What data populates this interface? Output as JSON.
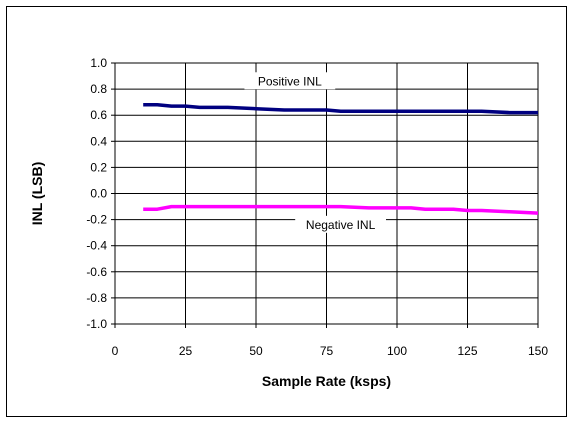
{
  "chart_data": {
    "type": "line",
    "title": "",
    "xlabel": "Sample Rate (ksps)",
    "ylabel": "INL (LSB)",
    "xlim": [
      0,
      150
    ],
    "ylim": [
      -1.0,
      1.0
    ],
    "xticks": [
      0,
      25,
      50,
      75,
      100,
      125,
      150
    ],
    "xtick_labels": [
      "0",
      "25",
      "50",
      "75",
      "100",
      "125",
      "150"
    ],
    "yticks": [
      -1.0,
      -0.8,
      -0.6,
      -0.4,
      -0.2,
      0.0,
      0.2,
      0.4,
      0.6,
      0.8,
      1.0
    ],
    "ytick_labels": [
      "-1.0",
      "-0.8",
      "-0.6",
      "-0.4",
      "-0.2",
      "0.0",
      "0.2",
      "0.4",
      "0.6",
      "0.8",
      "1.0"
    ],
    "grid": true,
    "legend": "none",
    "series": [
      {
        "name": "Positive INL",
        "color": "#000080",
        "x": [
          10,
          15,
          20,
          25,
          30,
          40,
          50,
          60,
          70,
          75,
          80,
          90,
          100,
          110,
          120,
          125,
          130,
          140,
          150
        ],
        "values": [
          0.68,
          0.68,
          0.67,
          0.67,
          0.66,
          0.66,
          0.65,
          0.64,
          0.64,
          0.64,
          0.63,
          0.63,
          0.63,
          0.63,
          0.63,
          0.63,
          0.63,
          0.62,
          0.62
        ]
      },
      {
        "name": "Negative INL",
        "color": "#ff00ff",
        "x": [
          10,
          15,
          20,
          25,
          30,
          40,
          50,
          60,
          70,
          75,
          80,
          90,
          100,
          105,
          110,
          120,
          125,
          130,
          140,
          150
        ],
        "values": [
          -0.12,
          -0.12,
          -0.1,
          -0.1,
          -0.1,
          -0.1,
          -0.1,
          -0.1,
          -0.1,
          -0.1,
          -0.1,
          -0.11,
          -0.11,
          -0.11,
          -0.12,
          -0.12,
          -0.13,
          -0.13,
          -0.14,
          -0.15
        ]
      }
    ],
    "annotations": [
      {
        "text": "Positive INL",
        "series": 0
      },
      {
        "text": "Negative INL",
        "series": 1
      }
    ]
  }
}
